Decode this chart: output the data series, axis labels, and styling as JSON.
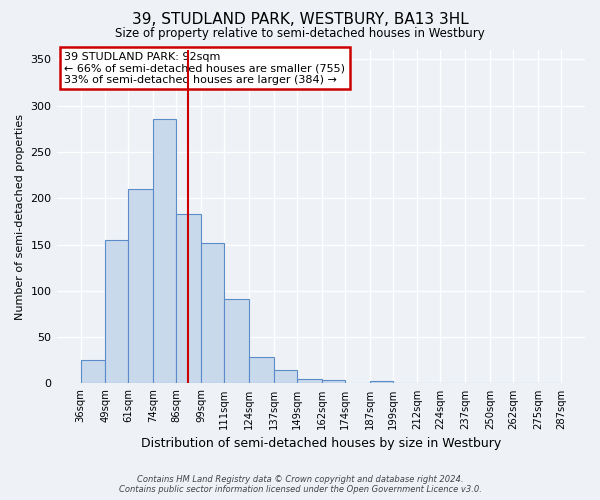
{
  "title": "39, STUDLAND PARK, WESTBURY, BA13 3HL",
  "subtitle": "Size of property relative to semi-detached houses in Westbury",
  "xlabel": "Distribution of semi-detached houses by size in Westbury",
  "ylabel": "Number of semi-detached properties",
  "bin_edges": [
    36,
    49,
    61,
    74,
    86,
    99,
    111,
    124,
    137,
    149,
    162,
    174,
    187,
    199,
    212,
    224,
    237,
    250,
    262,
    275,
    287
  ],
  "bin_labels": [
    "36sqm",
    "49sqm",
    "61sqm",
    "74sqm",
    "86sqm",
    "99sqm",
    "111sqm",
    "124sqm",
    "137sqm",
    "149sqm",
    "162sqm",
    "174sqm",
    "187sqm",
    "199sqm",
    "212sqm",
    "224sqm",
    "237sqm",
    "250sqm",
    "262sqm",
    "275sqm",
    "287sqm"
  ],
  "counts": [
    25,
    155,
    210,
    285,
    183,
    152,
    91,
    28,
    14,
    5,
    4,
    0,
    3,
    0,
    1,
    0,
    0,
    1,
    0,
    0
  ],
  "bar_color": "#c9d9ec",
  "bar_edge_color": "#5b8cc8",
  "vline_x": 92,
  "vline_color": "#cc0000",
  "annotation_title": "39 STUDLAND PARK: 92sqm",
  "annotation_line1": "← 66% of semi-detached houses are smaller (755)",
  "annotation_line2": "33% of semi-detached houses are larger (384) →",
  "annotation_box_color": "white",
  "annotation_box_edge": "#cc0000",
  "ylim": [
    0,
    360
  ],
  "yticks": [
    0,
    50,
    100,
    150,
    200,
    250,
    300,
    350
  ],
  "footer1": "Contains HM Land Registry data © Crown copyright and database right 2024.",
  "footer2": "Contains public sector information licensed under the Open Government Licence v3.0.",
  "bg_color": "#eef2f7",
  "grid_color": "#ffffff"
}
